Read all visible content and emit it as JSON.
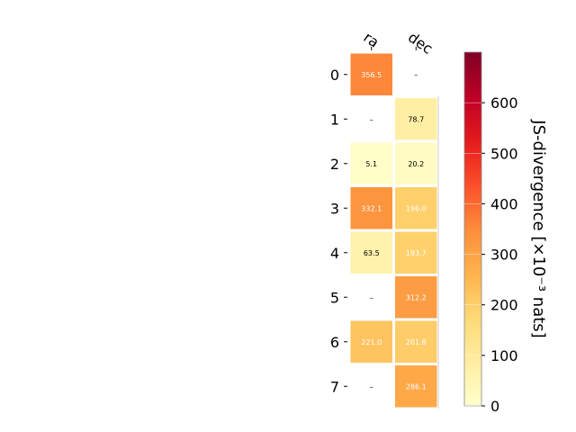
{
  "chart_data": {
    "type": "heatmap",
    "columns": [
      "ra",
      "dec"
    ],
    "rows": [
      "0",
      "1",
      "2",
      "3",
      "4",
      "5",
      "6",
      "7"
    ],
    "values": [
      [
        356.5,
        null
      ],
      [
        null,
        78.7
      ],
      [
        5.1,
        20.2
      ],
      [
        332.1,
        196.0
      ],
      [
        63.5,
        193.7
      ],
      [
        null,
        312.2
      ],
      [
        221.0,
        201.8
      ],
      [
        null,
        286.1
      ]
    ],
    "cell_labels": [
      [
        "356.5",
        "–"
      ],
      [
        "–",
        "78.7"
      ],
      [
        "5.1",
        "20.2"
      ],
      [
        "332.1",
        "196.0"
      ],
      [
        "63.5",
        "193.7"
      ],
      [
        "–",
        "312.2"
      ],
      [
        "221.0",
        "201.8"
      ],
      [
        "–",
        "286.1"
      ]
    ],
    "colorbar": {
      "label": "JS-divergence [×10⁻³ nats]",
      "range": [
        0,
        700
      ],
      "ticks": [
        0,
        100,
        200,
        300,
        400,
        500,
        600
      ],
      "tick_labels": [
        "0",
        "100",
        "200",
        "300",
        "400",
        "500",
        "600"
      ],
      "colormap": "YlOrRd"
    },
    "grid": false
  }
}
